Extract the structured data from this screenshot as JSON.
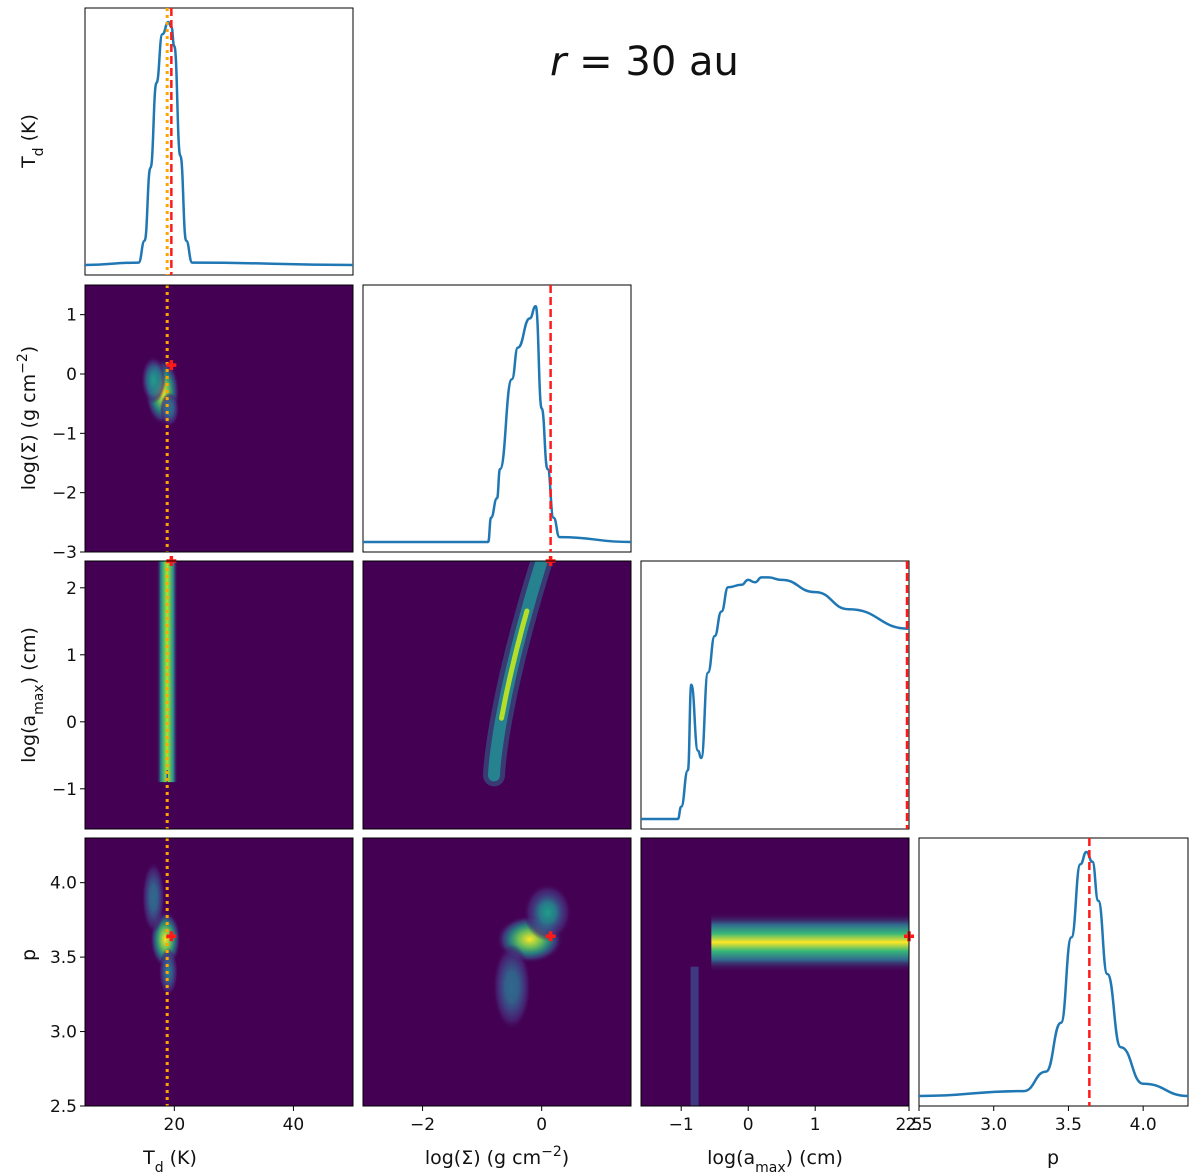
{
  "title": {
    "var": "r",
    "eq": " = ",
    "val": "30 au"
  },
  "colors": {
    "line": "#1f77b4",
    "truth": "#ff1a1a",
    "orange": "#ffa500",
    "bg": "#440154"
  },
  "chart_data": {
    "type": "heatmap",
    "grid": false,
    "labels": {
      "Td": {
        "base": "T",
        "sub": "d",
        "rest": " (K)"
      },
      "Sig": {
        "base": "log(Σ) (g cm",
        "sup": "−2",
        "rest": ")"
      },
      "amax": {
        "base": "log(a",
        "sub": "max",
        "rest": ") (cm)"
      },
      "p": {
        "base": "p"
      }
    },
    "params": [
      {
        "key": "Td",
        "range": [
          5,
          50
        ],
        "ticks": [
          20,
          40
        ],
        "tick_labels": [
          "20",
          "40"
        ],
        "truth": 19.5,
        "true_alt": 18.8
      },
      {
        "key": "Sig",
        "range": [
          -3,
          1.5
        ],
        "ticks": [
          -3,
          -2,
          -1,
          0,
          1
        ],
        "tick_labels": [
          "−3",
          "−2",
          "−1",
          "0",
          "1"
        ],
        "truth": 0.15
      },
      {
        "key": "amax",
        "range": [
          -1.6,
          2.4
        ],
        "ticks": [
          -1,
          0,
          1,
          2
        ],
        "tick_labels": [
          "−1",
          "0",
          "1",
          "2"
        ],
        "truth": 2.4
      },
      {
        "key": "p",
        "range": [
          2.5,
          4.3
        ],
        "ticks": [
          2.5,
          3.0,
          3.5,
          4.0
        ],
        "tick_labels": [
          "2.5",
          "3.0",
          "3.5",
          "4.0"
        ],
        "truth": 3.64
      }
    ],
    "xaxis_labels": {
      "Sig": [
        "−2",
        "0"
      ],
      "amax": [
        "−1",
        "0",
        "1",
        "2.5"
      ],
      "p": [
        "2.5",
        "3.0",
        "3.5",
        "4.0"
      ]
    },
    "marginals": [
      {
        "param": "Td",
        "x": [
          5,
          14,
          15,
          16,
          17,
          18,
          19,
          19.5,
          20,
          21,
          22,
          23,
          50
        ],
        "y": [
          0.0,
          0.01,
          0.1,
          0.4,
          0.75,
          0.95,
          1.0,
          0.98,
          0.9,
          0.45,
          0.1,
          0.01,
          0.0
        ]
      },
      {
        "param": "Sig",
        "x": [
          -3,
          -0.9,
          -0.85,
          -0.75,
          -0.7,
          -0.5,
          -0.4,
          -0.2,
          -0.1,
          0.0,
          0.1,
          0.2,
          0.3,
          1.5
        ],
        "y": [
          0.0,
          0.0,
          0.1,
          0.18,
          0.3,
          0.67,
          0.8,
          0.92,
          0.97,
          0.55,
          0.3,
          0.1,
          0.02,
          0.0
        ]
      },
      {
        "param": "amax",
        "x": [
          -1.6,
          -1.05,
          -1.0,
          -0.9,
          -0.85,
          -0.75,
          -0.7,
          -0.6,
          -0.5,
          -0.4,
          -0.3,
          -0.1,
          0.0,
          0.1,
          0.2,
          0.3,
          0.5,
          1.0,
          1.5,
          2.4
        ],
        "y": [
          0.0,
          0.0,
          0.05,
          0.2,
          0.55,
          0.28,
          0.25,
          0.6,
          0.75,
          0.85,
          0.95,
          0.96,
          0.98,
          0.97,
          0.99,
          0.99,
          0.98,
          0.93,
          0.86,
          0.78
        ]
      },
      {
        "param": "p",
        "x": [
          2.5,
          3.2,
          3.35,
          3.45,
          3.52,
          3.58,
          3.62,
          3.66,
          3.7,
          3.76,
          3.85,
          4.0,
          4.3
        ],
        "y": [
          0.0,
          0.02,
          0.1,
          0.3,
          0.65,
          0.95,
          1.0,
          0.96,
          0.8,
          0.5,
          0.2,
          0.05,
          0.0
        ]
      }
    ],
    "joint": [
      {
        "row": 1,
        "col": 0,
        "truth": [
          19.5,
          0.15
        ],
        "blobs": [
          [
            18.0,
            -0.3,
            1.8,
            0.35,
            1.0
          ],
          [
            16.5,
            -0.1,
            1.3,
            0.25,
            0.6
          ],
          [
            19.2,
            -0.6,
            1.0,
            0.18,
            0.35
          ]
        ]
      },
      {
        "row": 2,
        "col": 0,
        "truth": [
          19.5,
          2.4
        ],
        "band": {
          "x": 18.8,
          "w": 1.8,
          "y0": -0.9,
          "y1": 2.4
        }
      },
      {
        "row": 2,
        "col": 1,
        "truth": [
          0.15,
          2.4
        ],
        "ridge": {
          "x0": -0.8,
          "y0": -0.8,
          "x1": 0.0,
          "y1": 2.4
        }
      },
      {
        "row": 3,
        "col": 0,
        "truth": [
          19.5,
          3.64
        ],
        "blobs": [
          [
            18.5,
            3.62,
            1.6,
            0.12,
            1.0
          ],
          [
            16.5,
            3.9,
            1.2,
            0.15,
            0.35
          ],
          [
            19.0,
            3.4,
            1.0,
            0.1,
            0.4
          ]
        ]
      },
      {
        "row": 3,
        "col": 1,
        "truth": [
          0.15,
          3.64
        ],
        "blobs": [
          [
            -0.2,
            3.62,
            0.35,
            0.1,
            1.0
          ],
          [
            0.1,
            3.8,
            0.25,
            0.12,
            0.5
          ],
          [
            -0.5,
            3.3,
            0.2,
            0.18,
            0.35
          ]
        ]
      },
      {
        "row": 3,
        "col": 2,
        "truth": [
          2.4,
          3.64
        ],
        "hband": {
          "x0": -0.55,
          "y": 3.6,
          "h": 0.09
        }
      }
    ]
  }
}
